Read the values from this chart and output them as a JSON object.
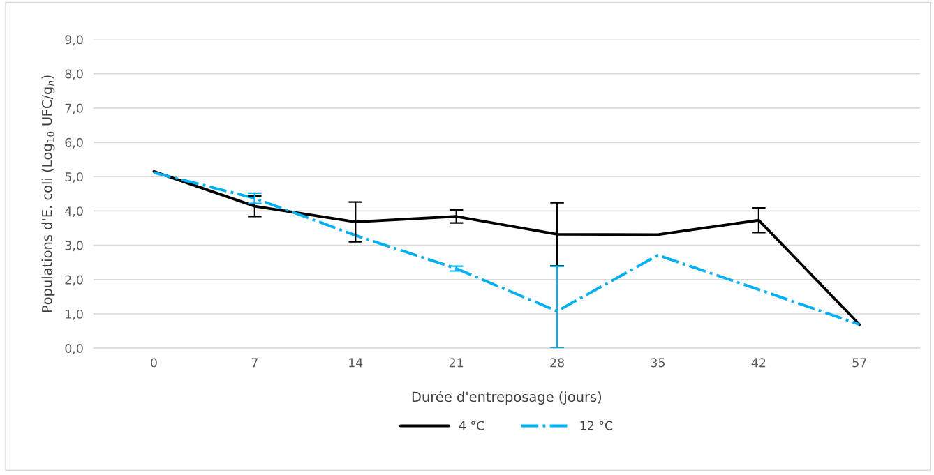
{
  "chart_data": {
    "type": "line",
    "xlabel": "Durée d'entreposage (jours)",
    "ylabel": "Populations d'E. coli (Log$_{10}$ UFC/g$_{h}$)",
    "categories": [
      "0",
      "7",
      "14",
      "21",
      "28",
      "35",
      "42",
      "57"
    ],
    "series": [
      {
        "name": "4 °C",
        "color": "#000000",
        "line_style": "solid",
        "values": [
          5.15,
          4.14,
          3.68,
          3.84,
          3.32,
          3.31,
          3.73,
          0.69
        ],
        "errors": [
          null,
          0.3,
          0.58,
          0.19,
          0.92,
          null,
          0.36,
          null
        ]
      },
      {
        "name": "12 °C",
        "color": "#00b0f0",
        "line_style": "dashdot",
        "values": [
          5.12,
          4.37,
          3.29,
          2.32,
          1.08,
          2.71,
          1.71,
          0.69
        ],
        "errors": [
          null,
          0.15,
          null,
          0.07,
          [
            0,
            2.39
          ],
          null,
          null,
          null
        ]
      }
    ],
    "ylim": [
      0,
      9
    ],
    "yticks": [
      {
        "value": 0,
        "label": "0,0"
      },
      {
        "value": 1,
        "label": "1,0"
      },
      {
        "value": 2,
        "label": "2,0"
      },
      {
        "value": 3,
        "label": "3,0"
      },
      {
        "value": 4,
        "label": "4,0"
      },
      {
        "value": 5,
        "label": "5,0"
      },
      {
        "value": 6,
        "label": "6,0"
      },
      {
        "value": 7,
        "label": "7,0"
      },
      {
        "value": 8,
        "label": "8,0"
      },
      {
        "value": 9,
        "label": "9,0"
      }
    ],
    "grid": "y",
    "legend": "bottom"
  }
}
